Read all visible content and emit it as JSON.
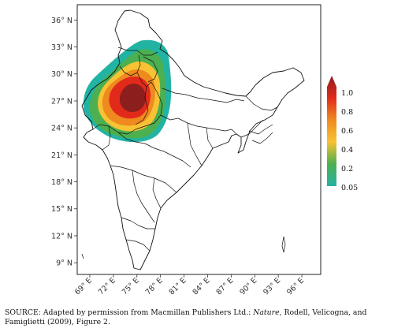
{
  "map": {
    "lat_ticks": [
      "36° N",
      "33° N",
      "30° N",
      "27° N",
      "24° N",
      "21° N",
      "18° N",
      "15° N",
      "12° N",
      "9° N"
    ],
    "lon_ticks": [
      "69° E",
      "72° E",
      "75° E",
      "78° E",
      "81° E",
      "84° E",
      "87° E",
      "90° E",
      "93° E",
      "96° E"
    ],
    "lat_range": [
      7.7,
      37.7
    ],
    "lon_range": [
      67.4,
      98.4
    ],
    "anomaly_center": {
      "lon": 74.6,
      "lat": 27.4
    },
    "fill_colors": [
      "#22b3a3",
      "#4caf50",
      "#f7c233",
      "#ef8a1f",
      "#e22a1b",
      "#8d1e1e"
    ]
  },
  "legend": {
    "labels": [
      "1.0",
      "0.8",
      "0.6",
      "0.4",
      "0.2",
      "0.05"
    ],
    "colors": [
      "#8d1e1e",
      "#e22a1b",
      "#ef8a1f",
      "#f7c233",
      "#4caf50",
      "#22b3a3"
    ]
  },
  "source": {
    "prefix": "SOURCE: Adapted by permission from Macmillan Publishers Ltd.: ",
    "journal": "Nature",
    "suffix": ", Rodell, Velicogna, and Famiglietti (2009), Figure 2."
  }
}
